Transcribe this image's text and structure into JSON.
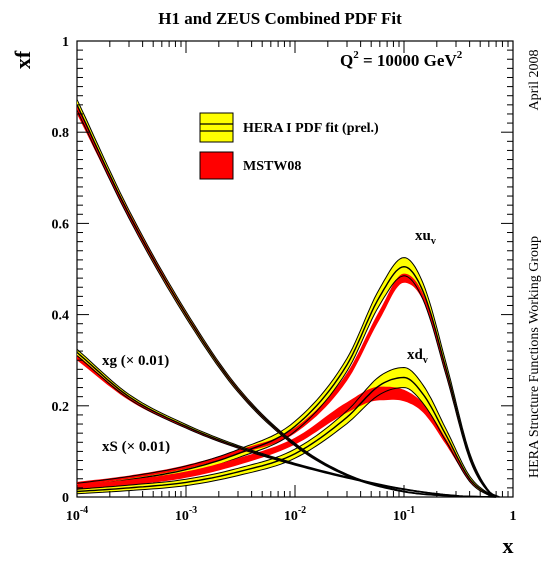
{
  "chart_data": {
    "type": "line",
    "title": "H1 and ZEUS Combined PDF Fit",
    "scale_label": {
      "base": "Q",
      "exp": "2",
      "mid": " = 10000 GeV",
      "unit_exp": "2"
    },
    "xlabel": "x",
    "ylabel": "xf",
    "xscale": "log",
    "xlim": [
      0.0001,
      1
    ],
    "ylim": [
      0,
      1
    ],
    "x_tick_labels": [
      {
        "x": 0.0001,
        "base": "10",
        "exp": "-4"
      },
      {
        "x": 0.001,
        "base": "10",
        "exp": "-3"
      },
      {
        "x": 0.01,
        "base": "10",
        "exp": "-2"
      },
      {
        "x": 0.1,
        "base": "10",
        "exp": "-1"
      },
      {
        "x": 1,
        "base": "1",
        "exp": ""
      }
    ],
    "y_tick_labels": [
      "0",
      "0.2",
      "0.4",
      "0.6",
      "0.8",
      "1"
    ],
    "y_ticks": [
      0,
      0.2,
      0.4,
      0.6,
      0.8,
      1
    ],
    "side_notes": {
      "date": "April 2008",
      "group": "HERA Structure Functions Working Group"
    },
    "legend": [
      {
        "label": "HERA I PDF fit (prel.)",
        "color": "#ffff00",
        "style": "band-with-lines"
      },
      {
        "label": "MSTW08",
        "color": "#ff0000",
        "style": "band"
      }
    ],
    "curve_labels": {
      "xuv": {
        "text": "xu",
        "sub": "v"
      },
      "xdv": {
        "text": "xd",
        "sub": "v"
      },
      "xg": {
        "text": "xg (× 0.01)"
      },
      "xS": {
        "text": "xS (× 0.01)"
      }
    },
    "series": [
      {
        "name": "xu_v",
        "x": [
          0.0001,
          0.0003,
          0.001,
          0.003,
          0.01,
          0.03,
          0.06,
          0.1,
          0.15,
          0.25,
          0.4,
          0.6,
          0.75
        ],
        "hera": [
          0.024,
          0.038,
          0.06,
          0.095,
          0.155,
          0.29,
          0.44,
          0.505,
          0.45,
          0.27,
          0.09,
          0.012,
          0.0
        ],
        "hera_err": [
          0.006,
          0.007,
          0.008,
          0.009,
          0.011,
          0.014,
          0.018,
          0.02,
          0.018,
          0.013,
          0.007,
          0.002,
          0.0
        ],
        "mstw_low": [
          0.026,
          0.04,
          0.062,
          0.094,
          0.14,
          0.255,
          0.39,
          0.47,
          0.43,
          0.26,
          0.085,
          0.011,
          0.0
        ],
        "mstw_high": [
          0.033,
          0.047,
          0.07,
          0.103,
          0.152,
          0.272,
          0.41,
          0.49,
          0.445,
          0.27,
          0.09,
          0.013,
          0.0
        ]
      },
      {
        "name": "xd_v",
        "x": [
          0.0001,
          0.0003,
          0.001,
          0.003,
          0.01,
          0.03,
          0.06,
          0.1,
          0.15,
          0.25,
          0.4,
          0.6,
          0.75
        ],
        "hera": [
          0.012,
          0.02,
          0.032,
          0.055,
          0.095,
          0.175,
          0.245,
          0.262,
          0.225,
          0.13,
          0.04,
          0.006,
          0.0
        ],
        "hera_err": [
          0.005,
          0.006,
          0.007,
          0.008,
          0.01,
          0.014,
          0.02,
          0.022,
          0.02,
          0.013,
          0.006,
          0.002,
          0.0
        ],
        "mstw_low": [
          0.016,
          0.026,
          0.042,
          0.07,
          0.115,
          0.185,
          0.212,
          0.21,
          0.185,
          0.11,
          0.035,
          0.005,
          0.0
        ],
        "mstw_high": [
          0.028,
          0.038,
          0.056,
          0.085,
          0.13,
          0.208,
          0.242,
          0.235,
          0.205,
          0.123,
          0.04,
          0.007,
          0.0
        ]
      },
      {
        "name": "xg (×0.01)",
        "x": [
          0.0001,
          0.0003,
          0.001,
          0.003,
          0.01,
          0.03,
          0.1,
          0.3,
          0.7
        ],
        "hera": [
          0.317,
          0.22,
          0.155,
          0.11,
          0.072,
          0.043,
          0.017,
          0.003,
          0.0
        ],
        "hera_err": [
          0.007,
          0.005,
          0.004,
          0.003,
          0.002,
          0.0015,
          0.001,
          0.0005,
          0.0
        ],
        "mstw_low": [
          0.3,
          0.212,
          0.151,
          0.107,
          0.07,
          0.042,
          0.016,
          0.003,
          0.0
        ],
        "mstw_high": [
          0.312,
          0.218,
          0.156,
          0.111,
          0.073,
          0.044,
          0.017,
          0.003,
          0.0
        ]
      },
      {
        "name": "xS (×0.01)",
        "x": [
          0.0001,
          0.0003,
          0.001,
          0.003,
          0.01,
          0.03,
          0.1,
          0.3,
          0.7
        ],
        "hera": [
          0.86,
          0.62,
          0.4,
          0.235,
          0.115,
          0.048,
          0.012,
          0.002,
          0.0
        ],
        "hera_err": [
          0.012,
          0.009,
          0.007,
          0.005,
          0.003,
          0.002,
          0.001,
          0.0005,
          0.0
        ],
        "mstw_low": [
          0.84,
          0.612,
          0.396,
          0.232,
          0.113,
          0.047,
          0.012,
          0.002,
          0.0
        ],
        "mstw_high": [
          0.858,
          0.625,
          0.404,
          0.238,
          0.117,
          0.049,
          0.013,
          0.002,
          0.0
        ]
      }
    ]
  }
}
